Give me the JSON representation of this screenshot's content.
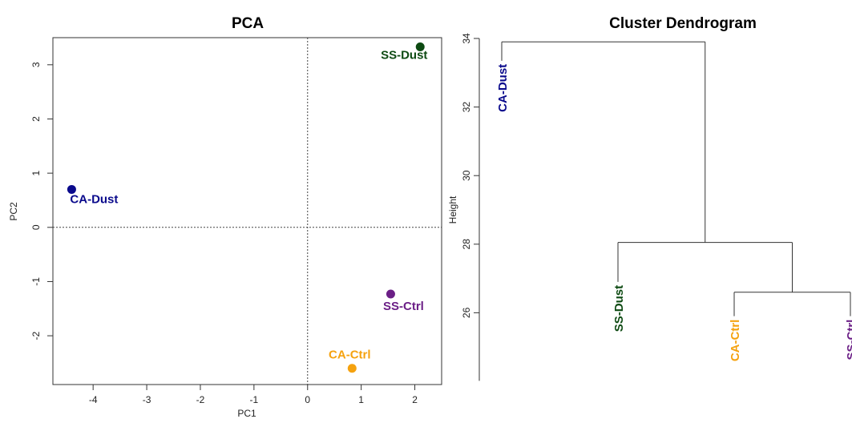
{
  "chart_data": [
    {
      "type": "scatter",
      "title": "PCA",
      "xlabel": "PC1",
      "ylabel": "PC2",
      "xlim": [
        -4.75,
        2.5
      ],
      "ylim": [
        -2.9,
        3.5
      ],
      "xticks": [
        -4,
        -3,
        -2,
        -1,
        0,
        1,
        2
      ],
      "yticks": [
        -2,
        -1,
        0,
        1,
        2,
        3
      ],
      "reference_lines": {
        "x": 0,
        "y": 0,
        "style": "dotted"
      },
      "grid": false,
      "points": [
        {
          "label": "CA-Dust",
          "x": -4.4,
          "y": 0.7,
          "color": "#0a0a8c"
        },
        {
          "label": "SS-Dust",
          "x": 2.1,
          "y": 3.33,
          "color": "#0d4a12"
        },
        {
          "label": "SS-Ctrl",
          "x": 1.55,
          "y": -1.23,
          "color": "#6b1f86"
        },
        {
          "label": "CA-Ctrl",
          "x": 0.83,
          "y": -2.6,
          "color": "#f5a20f"
        }
      ]
    },
    {
      "type": "dendrogram",
      "title": "Cluster Dendrogram",
      "ylabel": "Height",
      "ylim": [
        24.0,
        34.0
      ],
      "yticks": [
        26,
        28,
        30,
        32,
        34
      ],
      "leaves": [
        {
          "label": "CA-Dust",
          "color": "#0a0a8c",
          "height": 33.35
        },
        {
          "label": "SS-Dust",
          "color": "#0d4a12",
          "height": 26.9
        },
        {
          "label": "CA-Ctrl",
          "color": "#f5a20f",
          "height": 25.9
        },
        {
          "label": "SS-Ctrl",
          "color": "#6b1f86",
          "height": 25.9
        }
      ],
      "merges": [
        {
          "left": 2,
          "right": 3,
          "height": 26.6
        },
        {
          "left": 1,
          "right": "m0",
          "height": 28.05
        },
        {
          "left": 0,
          "right": "m1",
          "height": 33.9
        }
      ]
    }
  ]
}
